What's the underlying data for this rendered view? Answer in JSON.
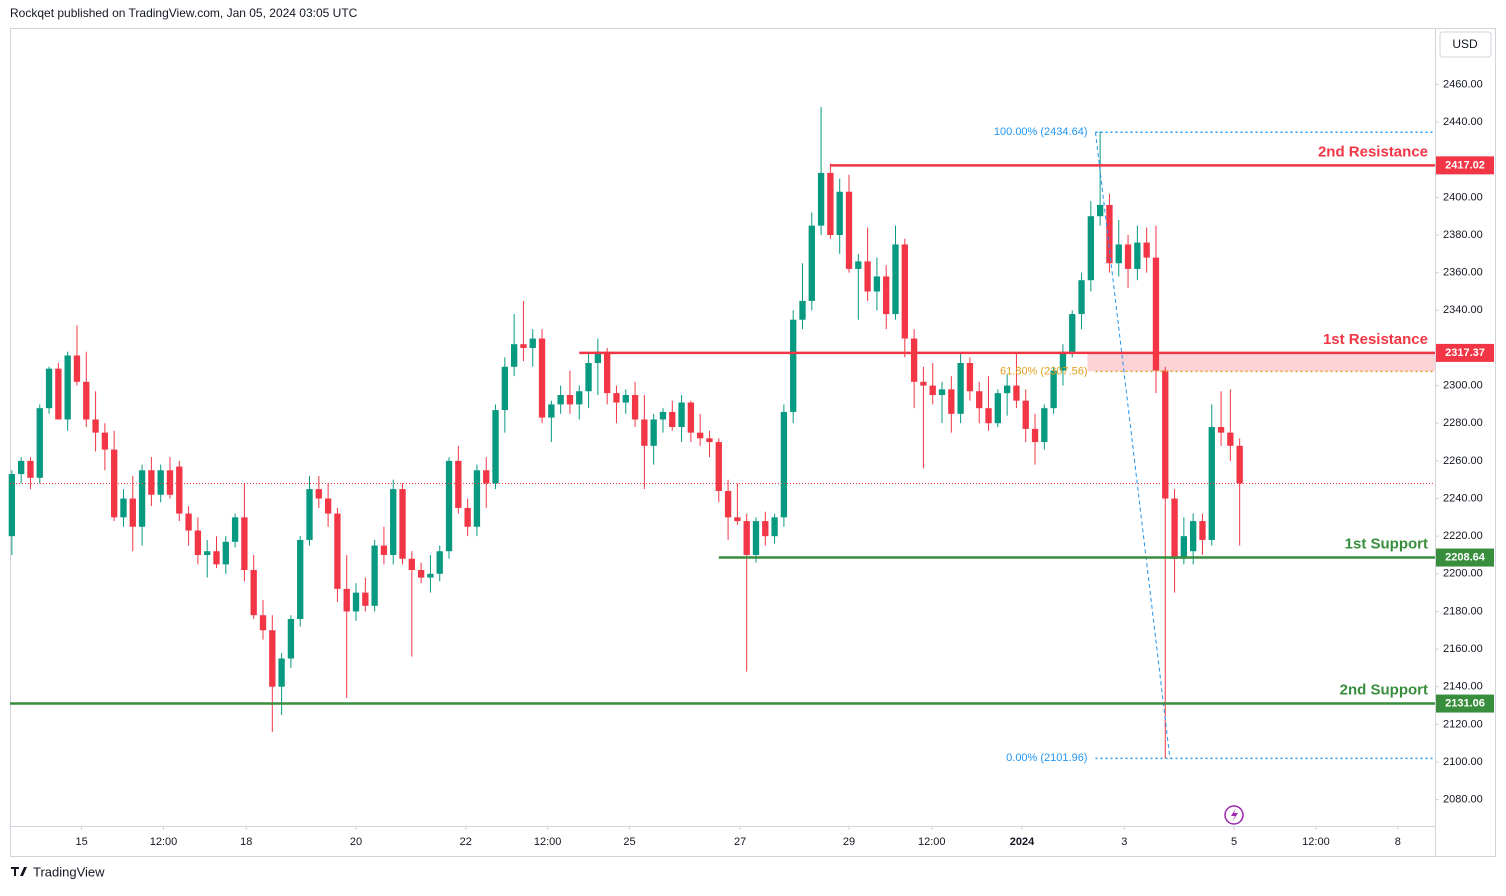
{
  "chart_data": {
    "type": "candlestick",
    "header": "Rockqet published on TradingView.com, Jan 05, 2024 03:05 UTC",
    "currency": "USD",
    "footer": "TradingView",
    "up_color": "#089981",
    "down_color": "#f23645",
    "candles": [
      [
        2220,
        2255,
        2210,
        2253
      ],
      [
        2253,
        2262,
        2248,
        2260
      ],
      [
        2260,
        2262,
        2245,
        2251
      ],
      [
        2251,
        2290,
        2248,
        2288
      ],
      [
        2288,
        2310,
        2285,
        2309
      ],
      [
        2309,
        2312,
        2282,
        2282
      ],
      [
        2282,
        2318,
        2276,
        2316
      ],
      [
        2316,
        2332,
        2300,
        2302
      ],
      [
        2302,
        2318,
        2278,
        2282
      ],
      [
        2282,
        2297,
        2265,
        2275
      ],
      [
        2275,
        2280,
        2255,
        2266
      ],
      [
        2266,
        2276,
        2228,
        2230
      ],
      [
        2230,
        2245,
        2225,
        2240
      ],
      [
        2240,
        2252,
        2212,
        2225
      ],
      [
        2225,
        2258,
        2215,
        2255
      ],
      [
        2255,
        2262,
        2236,
        2242
      ],
      [
        2242,
        2258,
        2238,
        2255
      ],
      [
        2255,
        2262,
        2240,
        2242
      ],
      [
        2257,
        2260,
        2228,
        2232
      ],
      [
        2232,
        2236,
        2215,
        2223
      ],
      [
        2223,
        2230,
        2205,
        2210
      ],
      [
        2210,
        2218,
        2198,
        2212
      ],
      [
        2212,
        2220,
        2203,
        2205
      ],
      [
        2205,
        2220,
        2200,
        2217
      ],
      [
        2217,
        2232,
        2214,
        2230
      ],
      [
        2230,
        2248,
        2196,
        2202
      ],
      [
        2202,
        2210,
        2176,
        2178
      ],
      [
        2178,
        2186,
        2165,
        2170
      ],
      [
        2170,
        2178,
        2116,
        2140
      ],
      [
        2140,
        2158,
        2125,
        2155
      ],
      [
        2155,
        2178,
        2150,
        2176
      ],
      [
        2176,
        2220,
        2172,
        2218
      ],
      [
        2218,
        2252,
        2215,
        2245
      ],
      [
        2245,
        2252,
        2235,
        2240
      ],
      [
        2240,
        2248,
        2225,
        2232
      ],
      [
        2232,
        2235,
        2185,
        2192
      ],
      [
        2192,
        2210,
        2134,
        2180
      ],
      [
        2180,
        2195,
        2175,
        2190
      ],
      [
        2190,
        2198,
        2180,
        2183
      ],
      [
        2183,
        2218,
        2180,
        2215
      ],
      [
        2215,
        2225,
        2205,
        2210
      ],
      [
        2210,
        2250,
        2205,
        2245
      ],
      [
        2245,
        2248,
        2205,
        2208
      ],
      [
        2208,
        2212,
        2156,
        2202
      ],
      [
        2202,
        2206,
        2195,
        2198
      ],
      [
        2198,
        2210,
        2190,
        2200
      ],
      [
        2200,
        2215,
        2196,
        2212
      ],
      [
        2212,
        2262,
        2208,
        2260
      ],
      [
        2260,
        2268,
        2232,
        2235
      ],
      [
        2235,
        2240,
        2220,
        2225
      ],
      [
        2225,
        2258,
        2220,
        2255
      ],
      [
        2255,
        2262,
        2235,
        2248
      ],
      [
        2248,
        2290,
        2245,
        2287
      ],
      [
        2287,
        2315,
        2275,
        2310
      ],
      [
        2310,
        2338,
        2305,
        2322
      ],
      [
        2322,
        2345,
        2313,
        2320
      ],
      [
        2320,
        2330,
        2310,
        2325
      ],
      [
        2325,
        2330,
        2280,
        2283
      ],
      [
        2283,
        2292,
        2270,
        2290
      ],
      [
        2290,
        2300,
        2285,
        2295
      ],
      [
        2295,
        2308,
        2285,
        2290
      ],
      [
        2290,
        2300,
        2282,
        2297
      ],
      [
        2297,
        2318,
        2288,
        2312
      ],
      [
        2312,
        2325,
        2295,
        2318
      ],
      [
        2318,
        2320,
        2290,
        2296
      ],
      [
        2296,
        2300,
        2280,
        2291
      ],
      [
        2291,
        2298,
        2285,
        2295
      ],
      [
        2295,
        2302,
        2278,
        2282
      ],
      [
        2282,
        2295,
        2245,
        2268
      ],
      [
        2268,
        2285,
        2258,
        2282
      ],
      [
        2282,
        2288,
        2275,
        2286
      ],
      [
        2286,
        2292,
        2276,
        2278
      ],
      [
        2278,
        2295,
        2270,
        2291
      ],
      [
        2291,
        2292,
        2270,
        2275
      ],
      [
        2275,
        2285,
        2268,
        2272
      ],
      [
        2272,
        2276,
        2262,
        2270
      ],
      [
        2270,
        2272,
        2238,
        2244
      ],
      [
        2244,
        2250,
        2218,
        2230
      ],
      [
        2230,
        2248,
        2226,
        2228
      ],
      [
        2228,
        2232,
        2148,
        2210
      ],
      [
        2210,
        2230,
        2206,
        2228
      ],
      [
        2228,
        2233,
        2215,
        2220
      ],
      [
        2220,
        2232,
        2216,
        2230
      ],
      [
        2230,
        2290,
        2225,
        2286
      ],
      [
        2286,
        2340,
        2280,
        2335
      ],
      [
        2335,
        2365,
        2330,
        2345
      ],
      [
        2345,
        2392,
        2340,
        2385
      ],
      [
        2385,
        2448,
        2380,
        2413
      ],
      [
        2413,
        2418,
        2378,
        2380
      ],
      [
        2380,
        2410,
        2370,
        2403
      ],
      [
        2403,
        2412,
        2360,
        2362
      ],
      [
        2362,
        2370,
        2335,
        2366
      ],
      [
        2366,
        2384,
        2345,
        2350
      ],
      [
        2350,
        2368,
        2340,
        2358
      ],
      [
        2358,
        2364,
        2330,
        2338
      ],
      [
        2338,
        2385,
        2335,
        2375
      ],
      [
        2375,
        2378,
        2315,
        2325
      ],
      [
        2325,
        2330,
        2288,
        2302
      ],
      [
        2302,
        2310,
        2256,
        2300
      ],
      [
        2300,
        2312,
        2290,
        2295
      ],
      [
        2295,
        2302,
        2280,
        2298
      ],
      [
        2298,
        2305,
        2275,
        2285
      ],
      [
        2285,
        2318,
        2280,
        2312
      ],
      [
        2312,
        2315,
        2292,
        2297
      ],
      [
        2297,
        2302,
        2280,
        2288
      ],
      [
        2288,
        2305,
        2276,
        2280
      ],
      [
        2280,
        2298,
        2278,
        2296
      ],
      [
        2296,
        2306,
        2284,
        2300
      ],
      [
        2300,
        2318,
        2288,
        2292
      ],
      [
        2292,
        2298,
        2270,
        2277
      ],
      [
        2277,
        2285,
        2258,
        2270
      ],
      [
        2270,
        2290,
        2266,
        2288
      ],
      [
        2288,
        2310,
        2285,
        2308
      ],
      [
        2308,
        2322,
        2300,
        2318
      ],
      [
        2318,
        2340,
        2315,
        2338
      ],
      [
        2338,
        2360,
        2330,
        2356
      ],
      [
        2356,
        2398,
        2350,
        2390
      ],
      [
        2390,
        2435,
        2385,
        2396
      ],
      [
        2396,
        2402,
        2360,
        2365
      ],
      [
        2365,
        2388,
        2358,
        2375
      ],
      [
        2375,
        2380,
        2352,
        2362
      ],
      [
        2362,
        2385,
        2356,
        2376
      ],
      [
        2376,
        2384,
        2360,
        2368
      ],
      [
        2368,
        2385,
        2296,
        2308
      ],
      [
        2308,
        2310,
        2102,
        2240
      ],
      [
        2240,
        2245,
        2190,
        2208
      ],
      [
        2208,
        2230,
        2205,
        2220
      ],
      [
        2212,
        2232,
        2205,
        2228
      ],
      [
        2228,
        2232,
        2210,
        2218
      ],
      [
        2218,
        2290,
        2215,
        2278
      ],
      [
        2278,
        2297,
        2268,
        2275
      ],
      [
        2275,
        2298,
        2260,
        2268
      ],
      [
        2268,
        2272,
        2215,
        2248
      ]
    ],
    "xlim": [
      -0.2,
      153
    ],
    "xticks": [
      {
        "value": 7.5,
        "label": "15"
      },
      {
        "value": 16.3,
        "label": "12:00"
      },
      {
        "value": 25.2,
        "label": "18"
      },
      {
        "value": 37,
        "label": "20"
      },
      {
        "value": 48.8,
        "label": "22"
      },
      {
        "value": 57.6,
        "label": "12:00"
      },
      {
        "value": 66.4,
        "label": "25"
      },
      {
        "value": 78.3,
        "label": "27"
      },
      {
        "value": 90,
        "label": "29"
      },
      {
        "value": 98.9,
        "label": "12:00"
      },
      {
        "value": 108.6,
        "label": "2024"
      },
      {
        "value": 119.6,
        "label": "3"
      },
      {
        "value": 131.4,
        "label": "5"
      },
      {
        "value": 140.2,
        "label": "12:00"
      },
      {
        "value": 149,
        "label": "8"
      }
    ],
    "ylim": [
      2066,
      2490
    ],
    "yticks": [
      {
        "value": 2080,
        "label": "2080.00"
      },
      {
        "value": 2100,
        "label": "2100.00"
      },
      {
        "value": 2120,
        "label": "2120.00"
      },
      {
        "value": 2140,
        "label": "2140.00"
      },
      {
        "value": 2160,
        "label": "2160.00"
      },
      {
        "value": 2180,
        "label": "2180.00"
      },
      {
        "value": 2200,
        "label": "2200.00"
      },
      {
        "value": 2220,
        "label": "2220.00"
      },
      {
        "value": 2240,
        "label": "2240.00"
      },
      {
        "value": 2260,
        "label": "2260.00"
      },
      {
        "value": 2280,
        "label": "2280.00"
      },
      {
        "value": 2300,
        "label": "2300.00"
      },
      {
        "value": 2340,
        "label": "2340.00"
      },
      {
        "value": 2360,
        "label": "2360.00"
      },
      {
        "value": 2380,
        "label": "2380.00"
      },
      {
        "value": 2400,
        "label": "2400.00"
      },
      {
        "value": 2440,
        "label": "2440.00"
      },
      {
        "value": 2460,
        "label": "2460.00"
      }
    ],
    "levels": [
      {
        "name": "2nd Resistance",
        "value": 2417.02,
        "color": "#f23645",
        "start": 88
      },
      {
        "name": "1st Resistance",
        "value": 2317.37,
        "color": "#f23645",
        "start": 61
      },
      {
        "name": "1st Support",
        "value": 2208.64,
        "color": "#388e3c",
        "start": 76
      },
      {
        "name": "2nd Support",
        "value": 2131.06,
        "color": "#388e3c",
        "start": -0.2
      }
    ],
    "fib": [
      {
        "label": "100.00% (2434.64)",
        "value": 2434.64,
        "color": "#2196f3",
        "start": 116.5
      },
      {
        "label": "61.80% (2307.56)",
        "value": 2307.56,
        "color": "#e0a020",
        "start": 116.5
      },
      {
        "label": "0.00% (2101.96)",
        "value": 2101.96,
        "color": "#2196f3",
        "start": 116.5
      }
    ]
  }
}
